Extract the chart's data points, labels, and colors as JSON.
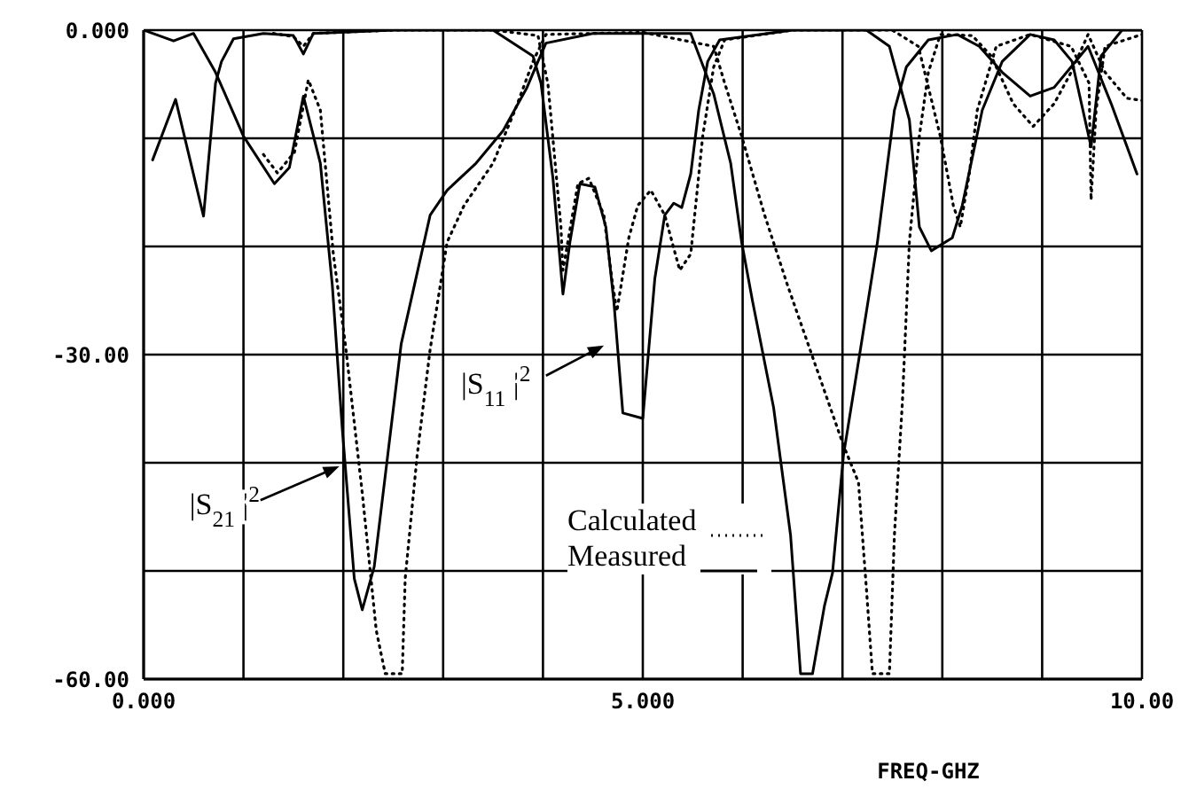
{
  "chart_data": {
    "type": "line",
    "xlim": [
      0,
      10
    ],
    "ylim": [
      -60,
      0
    ],
    "xticks": [
      {
        "value": 0,
        "label": "0.000"
      },
      {
        "value": 1,
        "label": null
      },
      {
        "value": 2,
        "label": null
      },
      {
        "value": 3,
        "label": null
      },
      {
        "value": 4,
        "label": null
      },
      {
        "value": 5,
        "label": "5.000"
      },
      {
        "value": 6,
        "label": null
      },
      {
        "value": 7,
        "label": null
      },
      {
        "value": 8,
        "label": null
      },
      {
        "value": 9,
        "label": null
      },
      {
        "value": 10,
        "label": "10.00"
      }
    ],
    "yticks": [
      {
        "value": 0,
        "label": "0.000"
      },
      {
        "value": -10,
        "label": null
      },
      {
        "value": -20,
        "label": null
      },
      {
        "value": -30,
        "label": "-30.00"
      },
      {
        "value": -40,
        "label": null
      },
      {
        "value": -50,
        "label": null
      },
      {
        "value": -60,
        "label": "-60.00"
      }
    ],
    "grid": true,
    "legend": "bottom",
    "marker": "none",
    "series": [
      {
        "name": "Measured",
        "color": "#000000",
        "line_style": "solid",
        "x": [
          0,
          0.3,
          0.5,
          0.72,
          1.0,
          1.31,
          1.46,
          1.6,
          1.77,
          1.89,
          1.99,
          2.11,
          2.19,
          2.31,
          2.58,
          2.87,
          3.04,
          3.33,
          3.6,
          3.84,
          3.95,
          4.03,
          4.5,
          5.0,
          5.48,
          5.71,
          5.88,
          5.99,
          6.1,
          6.31,
          6.48,
          6.58,
          6.7,
          6.82,
          6.9,
          7.01,
          7.18,
          7.35,
          7.52,
          7.64,
          7.86,
          8.15,
          8.37,
          8.6,
          8.88,
          9.12,
          9.29,
          9.46,
          9.7,
          9.95
        ],
        "values": [
          0,
          -1,
          -0.3,
          -3.9,
          -9.8,
          -14.2,
          -12.7,
          -6.1,
          -12.3,
          -23.6,
          -36.9,
          -50.7,
          -53.6,
          -49.6,
          -29,
          -17.1,
          -14.8,
          -12.3,
          -9.3,
          -5.3,
          -2.9,
          -1.2,
          -0.3,
          -0.3,
          -0.3,
          -5.9,
          -12.3,
          -19.6,
          -25.1,
          -34.9,
          -46.7,
          -59.5,
          -59.5,
          -53.2,
          -50.2,
          -39.3,
          -29.5,
          -19.6,
          -7.4,
          -3.4,
          -0.9,
          -0.4,
          -1.5,
          -3.9,
          -6.1,
          -5.3,
          -3.4,
          -1.5,
          -7,
          -13.3
        ]
      },
      {
        "color": "#000000",
        "line_style": "solid",
        "x": [
          0.09,
          0.32,
          0.6,
          0.72,
          0.78,
          0.9,
          1.2,
          1.5,
          1.6,
          1.7,
          2.5,
          3.5,
          3.9,
          3.98,
          4.1,
          4.2,
          4.27,
          4.37,
          4.52,
          4.63,
          4.71,
          4.8,
          5.0,
          5.12,
          5.22,
          5.31,
          5.39,
          5.48,
          5.56,
          5.65,
          5.77,
          6.5,
          7.24,
          7.47,
          7.67,
          7.77,
          7.89,
          8.1,
          8.2,
          8.4,
          8.6,
          8.88,
          9.12,
          9.3,
          9.49,
          9.59,
          9.8,
          10
        ],
        "values": [
          -12,
          -6.4,
          -17.2,
          -4.9,
          -2.9,
          -0.8,
          -0.3,
          -0.5,
          -2.2,
          -0.3,
          0,
          0,
          -2.4,
          -4.9,
          -13.7,
          -24.4,
          -19.6,
          -14.2,
          -14.5,
          -18.2,
          -25.1,
          -35.4,
          -35.9,
          -23,
          -17.1,
          -16,
          -16.4,
          -13.3,
          -7.4,
          -2.9,
          -0.9,
          0,
          0,
          -1.5,
          -8.3,
          -18.2,
          -20.4,
          -19.2,
          -16.2,
          -7.4,
          -2.9,
          -0.4,
          -0.9,
          -2.9,
          -10.8,
          -2.4,
          0,
          0
        ]
      },
      {
        "name": "Calculated",
        "color": "#000000",
        "line_style": "dotted",
        "x": [
          1.2,
          1.34,
          1.51,
          1.65,
          1.77,
          1.9,
          2.02,
          2.19,
          2.33,
          2.42,
          2.59,
          2.62,
          2.74,
          2.87,
          3.04,
          3.21,
          3.5,
          3.72,
          3.9,
          4.03,
          5.0,
          5.71,
          5.82,
          5.99,
          6.22,
          6.45,
          6.73,
          7.01,
          7.16,
          7.24,
          7.3,
          7.47,
          7.52,
          7.6,
          7.67,
          7.77,
          7.86,
          7.98,
          8.3,
          8.49,
          8.71,
          8.91,
          9.12,
          9.29,
          9.46,
          9.63,
          9.85,
          10
        ],
        "values": [
          -11.5,
          -13.2,
          -11.3,
          -4.6,
          -7.4,
          -20.7,
          -29,
          -42.8,
          -55.5,
          -59.5,
          -59.5,
          -50.7,
          -39.3,
          -29.5,
          -19.6,
          -16.2,
          -12.3,
          -7.4,
          -2.9,
          -0.4,
          -0.2,
          -1.5,
          -4.9,
          -9.8,
          -17.1,
          -23.6,
          -31,
          -38.4,
          -41.8,
          -51.7,
          -59.5,
          -59.5,
          -46.7,
          -34.4,
          -19.6,
          -9.8,
          -3.9,
          -0.4,
          -0.5,
          -2.4,
          -6.8,
          -8.9,
          -6.8,
          -3.9,
          -0.4,
          -3.9,
          -6.3,
          -6.5
        ]
      },
      {
        "color": "#000000",
        "line_style": "dotted",
        "x": [
          1.3,
          1.5,
          1.6,
          1.7,
          2.5,
          3.5,
          3.95,
          4.05,
          4.18,
          4.2,
          4.35,
          4.46,
          4.61,
          4.69,
          4.74,
          4.86,
          4.95,
          5.08,
          5.22,
          5.37,
          5.48,
          5.6,
          5.71,
          5.82,
          6.5,
          7.5,
          7.76,
          7.98,
          8.11,
          8.18,
          8.27,
          8.35,
          8.54,
          8.88,
          9.29,
          9.47,
          9.49,
          9.54,
          9.63,
          10
        ],
        "values": [
          -0.3,
          -0.6,
          -1.5,
          -0.3,
          0,
          0,
          -0.5,
          -5,
          -18.2,
          -22.2,
          -14.2,
          -13.7,
          -17.1,
          -23,
          -26,
          -19.2,
          -16.2,
          -14.8,
          -17.1,
          -22.2,
          -20.7,
          -9.8,
          -3.4,
          -0.9,
          0,
          0,
          -1.5,
          -9.8,
          -16.2,
          -18.2,
          -13.3,
          -7.4,
          -1.5,
          -0.4,
          -1.5,
          -4.9,
          -15.7,
          -7.4,
          -1.5,
          -0.4
        ]
      }
    ],
    "annotations": [
      "|S$_{21}$|$^{2}$",
      "|S$_{11}$|$^{2}$",
      "FREQ-GHZ"
    ]
  }
}
